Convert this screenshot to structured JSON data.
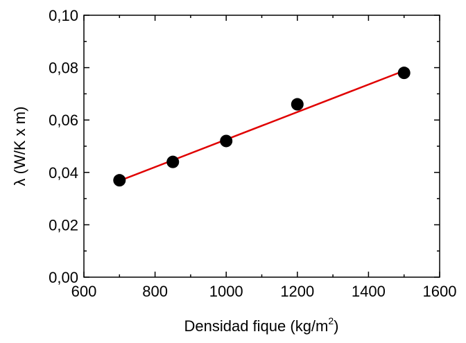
{
  "chart_data": {
    "type": "scatter",
    "xlabel_main": "Densidad fique (kg/m",
    "xlabel_sup": "2",
    "xlabel_close": ")",
    "ylabel": "λ (W/K x m)",
    "xlim": [
      600,
      1600
    ],
    "ylim": [
      0,
      0.1
    ],
    "x_ticks": [
      600,
      800,
      1000,
      1200,
      1400,
      1600
    ],
    "x_tick_labels": [
      "600",
      "800",
      "1000",
      "1200",
      "1400",
      "1600"
    ],
    "y_ticks": [
      0,
      0.02,
      0.04,
      0.06,
      0.08,
      0.1
    ],
    "y_tick_labels": [
      "0,00",
      "0,02",
      "0,04",
      "0,06",
      "0,08",
      "0,10"
    ],
    "grid": false,
    "series": [
      {
        "kind": "points",
        "color": "#000000",
        "x": [
          700,
          850,
          1000,
          1200,
          1500
        ],
        "y": [
          0.037,
          0.044,
          0.052,
          0.066,
          0.078
        ]
      },
      {
        "kind": "fit-line",
        "color": "#e00000",
        "x": [
          700,
          1500
        ],
        "y": [
          0.0368,
          0.0788
        ]
      }
    ]
  }
}
